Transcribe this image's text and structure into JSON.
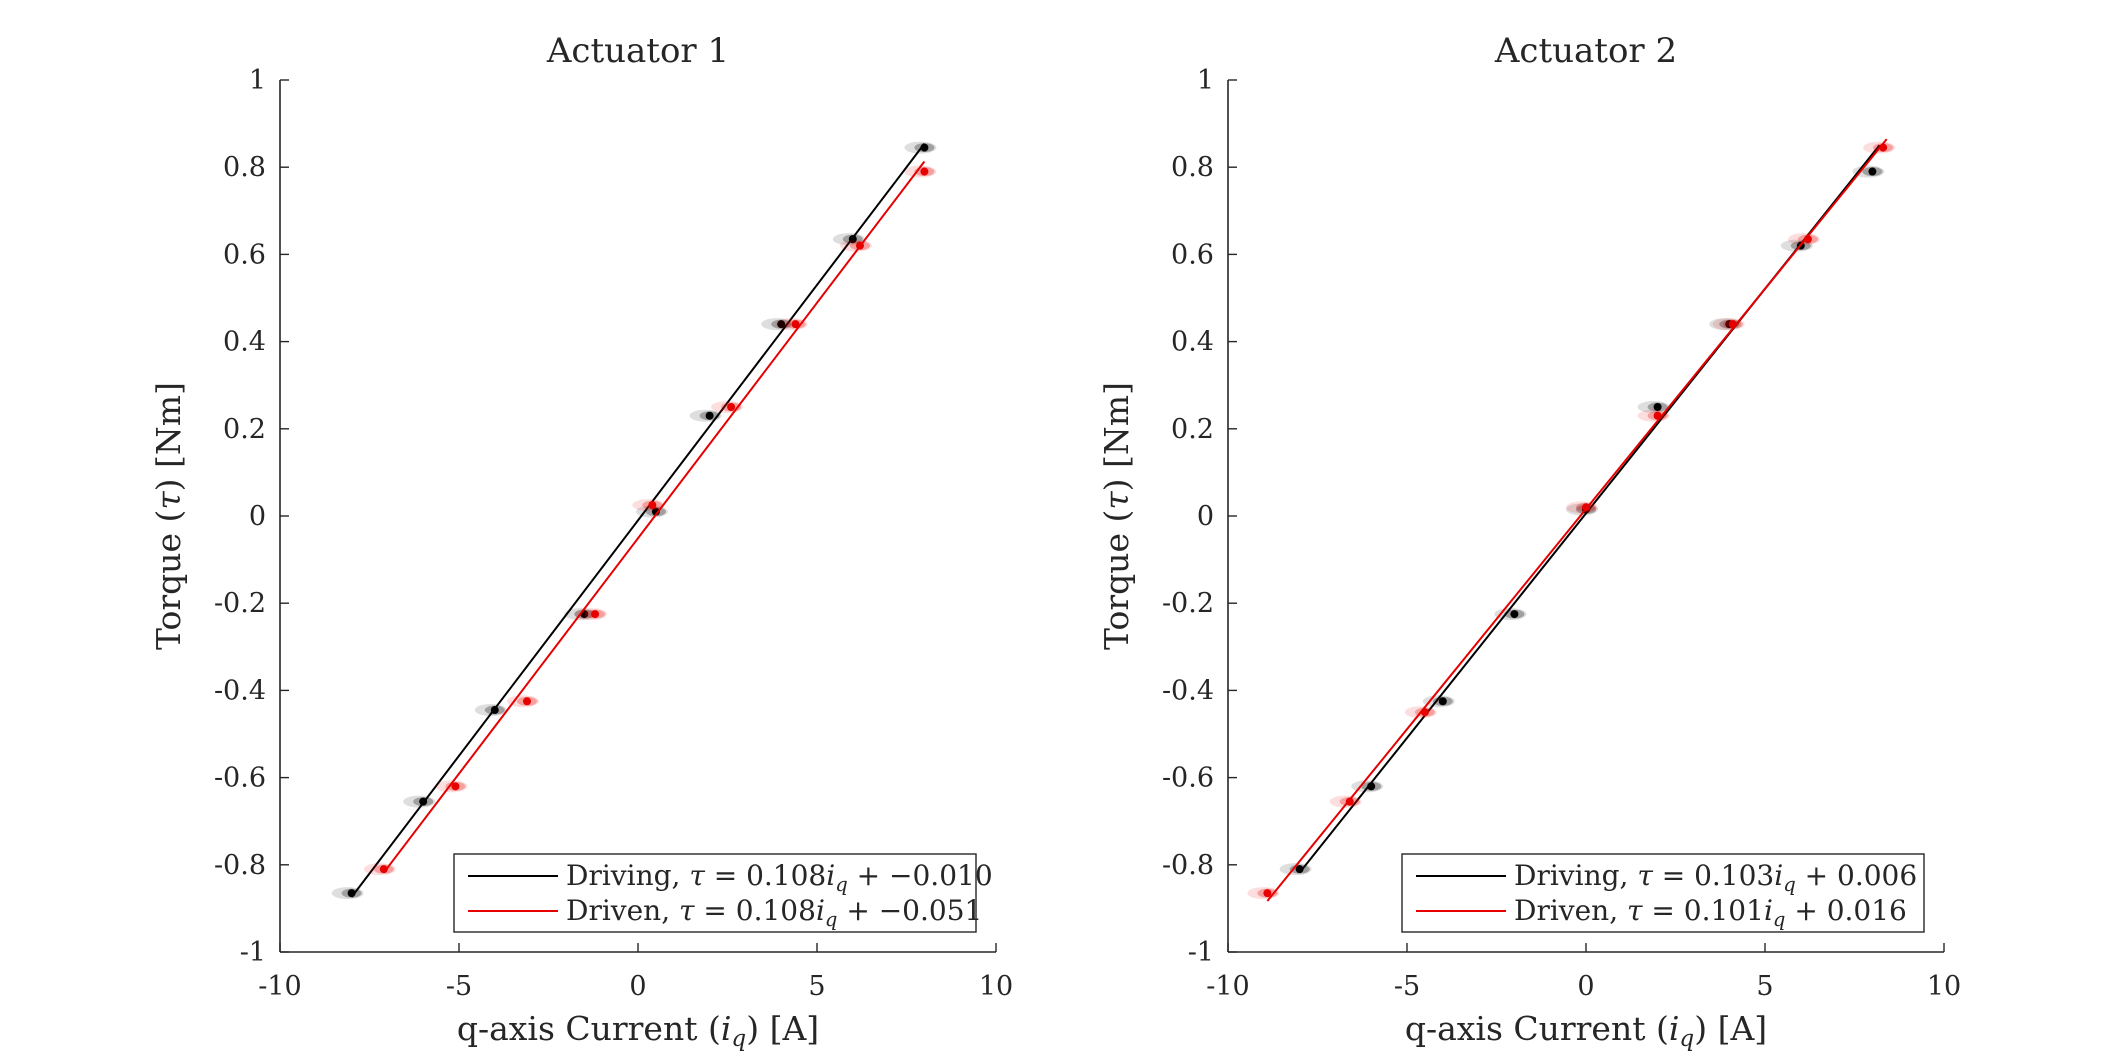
{
  "chart_data": [
    {
      "type": "scatter",
      "title": "Actuator 1",
      "xlabel": "q-axis Current (i_q) [A]",
      "ylabel": "Torque (τ) [Nm]",
      "xlim": [
        -10,
        10
      ],
      "ylim": [
        -1,
        1
      ],
      "xticks": [
        "-10",
        "-5",
        "0",
        "5",
        "10"
      ],
      "yticks": [
        "-1",
        "-0.8",
        "-0.6",
        "-0.4",
        "-0.2",
        "0",
        "0.2",
        "0.4",
        "0.6",
        "0.8",
        "1"
      ],
      "grid": false,
      "legend_position": "bottom-right",
      "series": [
        {
          "name": "Driving, τ = 0.108i_q + −0.010",
          "color": "#000000",
          "fit": {
            "slope": 0.108,
            "intercept": -0.01,
            "x_range": [
              -8.0,
              8.0
            ]
          },
          "points": [
            [
              -8.0,
              -0.865
            ],
            [
              -6.0,
              -0.655
            ],
            [
              -4.0,
              -0.445
            ],
            [
              -1.5,
              -0.225
            ],
            [
              0.5,
              0.01
            ],
            [
              2.0,
              0.23
            ],
            [
              4.0,
              0.44
            ],
            [
              6.0,
              0.635
            ],
            [
              8.0,
              0.845
            ]
          ]
        },
        {
          "name": "Driven, τ = 0.108i_q + −0.051",
          "color": "#e60000",
          "fit": {
            "slope": 0.108,
            "intercept": -0.051,
            "x_range": [
              -7.1,
              8.0
            ]
          },
          "points": [
            [
              -7.1,
              -0.81
            ],
            [
              -5.1,
              -0.62
            ],
            [
              -3.1,
              -0.425
            ],
            [
              -1.2,
              -0.225
            ],
            [
              0.4,
              0.025
            ],
            [
              2.6,
              0.25
            ],
            [
              4.4,
              0.44
            ],
            [
              6.2,
              0.62
            ],
            [
              8.0,
              0.79
            ]
          ]
        }
      ]
    },
    {
      "type": "scatter",
      "title": "Actuator 2",
      "xlabel": "q-axis Current (i_q) [A]",
      "ylabel": "Torque (τ) [Nm]",
      "xlim": [
        -10,
        10
      ],
      "ylim": [
        -1,
        1
      ],
      "xticks": [
        "-10",
        "-5",
        "0",
        "5",
        "10"
      ],
      "yticks": [
        "-1",
        "-0.8",
        "-0.6",
        "-0.4",
        "-0.2",
        "0",
        "0.2",
        "0.4",
        "0.6",
        "0.8",
        "1"
      ],
      "grid": false,
      "legend_position": "bottom-right",
      "series": [
        {
          "name": "Driving, τ = 0.103i_q + 0.006",
          "color": "#000000",
          "fit": {
            "slope": 0.103,
            "intercept": 0.006,
            "x_range": [
              -8.0,
              8.2
            ]
          },
          "points": [
            [
              -8.0,
              -0.81
            ],
            [
              -6.0,
              -0.62
            ],
            [
              -4.0,
              -0.425
            ],
            [
              -2.0,
              -0.225
            ],
            [
              0.0,
              0.015
            ],
            [
              2.0,
              0.25
            ],
            [
              4.0,
              0.44
            ],
            [
              6.0,
              0.62
            ],
            [
              8.0,
              0.79
            ]
          ]
        },
        {
          "name": "Driven, τ = 0.101i_q + 0.016",
          "color": "#e60000",
          "fit": {
            "slope": 0.101,
            "intercept": 0.016,
            "x_range": [
              -8.9,
              8.4
            ]
          },
          "points": [
            [
              -8.9,
              -0.865
            ],
            [
              -6.6,
              -0.655
            ],
            [
              -4.5,
              -0.45
            ],
            [
              2.0,
              0.23
            ],
            [
              0.0,
              0.02
            ],
            [
              4.1,
              0.44
            ],
            [
              6.2,
              0.635
            ],
            [
              8.3,
              0.845
            ]
          ]
        }
      ]
    }
  ]
}
